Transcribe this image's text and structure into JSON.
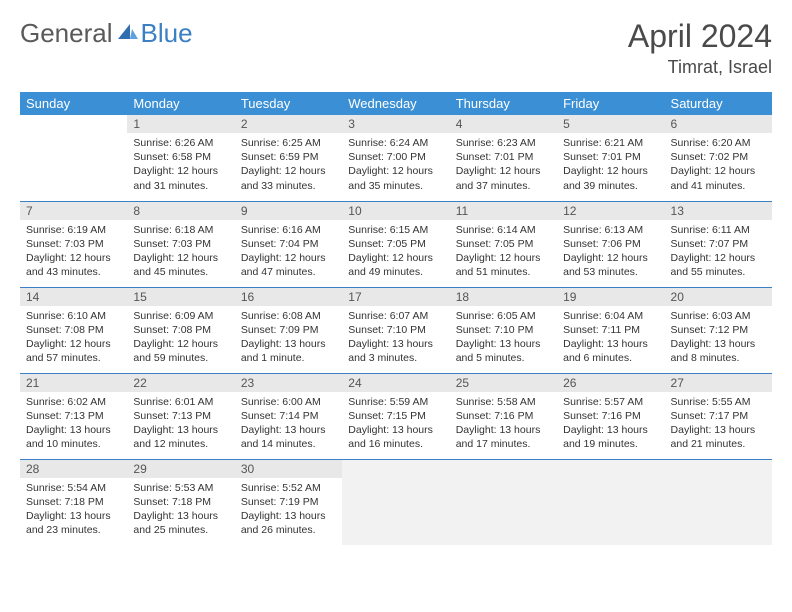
{
  "brand": {
    "part1": "General",
    "part2": "Blue"
  },
  "title": "April 2024",
  "location": "Timrat, Israel",
  "colors": {
    "header_bg": "#3b8fd4",
    "header_text": "#ffffff",
    "rule": "#3b7fc4",
    "daynum_bg": "#e8e8e8",
    "text": "#333333",
    "logo_gray": "#5a5a5a",
    "logo_blue": "#3b7fc4",
    "trailing_bg": "#f2f2f2"
  },
  "fonts": {
    "title_pt": 32,
    "location_pt": 18,
    "dayhead_pt": 13,
    "body_pt": 10.5
  },
  "dayNames": [
    "Sunday",
    "Monday",
    "Tuesday",
    "Wednesday",
    "Thursday",
    "Friday",
    "Saturday"
  ],
  "weeks": [
    [
      {
        "n": "",
        "sr": "",
        "ss": "",
        "dl": ""
      },
      {
        "n": "1",
        "sr": "Sunrise: 6:26 AM",
        "ss": "Sunset: 6:58 PM",
        "dl": "Daylight: 12 hours and 31 minutes."
      },
      {
        "n": "2",
        "sr": "Sunrise: 6:25 AM",
        "ss": "Sunset: 6:59 PM",
        "dl": "Daylight: 12 hours and 33 minutes."
      },
      {
        "n": "3",
        "sr": "Sunrise: 6:24 AM",
        "ss": "Sunset: 7:00 PM",
        "dl": "Daylight: 12 hours and 35 minutes."
      },
      {
        "n": "4",
        "sr": "Sunrise: 6:23 AM",
        "ss": "Sunset: 7:01 PM",
        "dl": "Daylight: 12 hours and 37 minutes."
      },
      {
        "n": "5",
        "sr": "Sunrise: 6:21 AM",
        "ss": "Sunset: 7:01 PM",
        "dl": "Daylight: 12 hours and 39 minutes."
      },
      {
        "n": "6",
        "sr": "Sunrise: 6:20 AM",
        "ss": "Sunset: 7:02 PM",
        "dl": "Daylight: 12 hours and 41 minutes."
      }
    ],
    [
      {
        "n": "7",
        "sr": "Sunrise: 6:19 AM",
        "ss": "Sunset: 7:03 PM",
        "dl": "Daylight: 12 hours and 43 minutes."
      },
      {
        "n": "8",
        "sr": "Sunrise: 6:18 AM",
        "ss": "Sunset: 7:03 PM",
        "dl": "Daylight: 12 hours and 45 minutes."
      },
      {
        "n": "9",
        "sr": "Sunrise: 6:16 AM",
        "ss": "Sunset: 7:04 PM",
        "dl": "Daylight: 12 hours and 47 minutes."
      },
      {
        "n": "10",
        "sr": "Sunrise: 6:15 AM",
        "ss": "Sunset: 7:05 PM",
        "dl": "Daylight: 12 hours and 49 minutes."
      },
      {
        "n": "11",
        "sr": "Sunrise: 6:14 AM",
        "ss": "Sunset: 7:05 PM",
        "dl": "Daylight: 12 hours and 51 minutes."
      },
      {
        "n": "12",
        "sr": "Sunrise: 6:13 AM",
        "ss": "Sunset: 7:06 PM",
        "dl": "Daylight: 12 hours and 53 minutes."
      },
      {
        "n": "13",
        "sr": "Sunrise: 6:11 AM",
        "ss": "Sunset: 7:07 PM",
        "dl": "Daylight: 12 hours and 55 minutes."
      }
    ],
    [
      {
        "n": "14",
        "sr": "Sunrise: 6:10 AM",
        "ss": "Sunset: 7:08 PM",
        "dl": "Daylight: 12 hours and 57 minutes."
      },
      {
        "n": "15",
        "sr": "Sunrise: 6:09 AM",
        "ss": "Sunset: 7:08 PM",
        "dl": "Daylight: 12 hours and 59 minutes."
      },
      {
        "n": "16",
        "sr": "Sunrise: 6:08 AM",
        "ss": "Sunset: 7:09 PM",
        "dl": "Daylight: 13 hours and 1 minute."
      },
      {
        "n": "17",
        "sr": "Sunrise: 6:07 AM",
        "ss": "Sunset: 7:10 PM",
        "dl": "Daylight: 13 hours and 3 minutes."
      },
      {
        "n": "18",
        "sr": "Sunrise: 6:05 AM",
        "ss": "Sunset: 7:10 PM",
        "dl": "Daylight: 13 hours and 5 minutes."
      },
      {
        "n": "19",
        "sr": "Sunrise: 6:04 AM",
        "ss": "Sunset: 7:11 PM",
        "dl": "Daylight: 13 hours and 6 minutes."
      },
      {
        "n": "20",
        "sr": "Sunrise: 6:03 AM",
        "ss": "Sunset: 7:12 PM",
        "dl": "Daylight: 13 hours and 8 minutes."
      }
    ],
    [
      {
        "n": "21",
        "sr": "Sunrise: 6:02 AM",
        "ss": "Sunset: 7:13 PM",
        "dl": "Daylight: 13 hours and 10 minutes."
      },
      {
        "n": "22",
        "sr": "Sunrise: 6:01 AM",
        "ss": "Sunset: 7:13 PM",
        "dl": "Daylight: 13 hours and 12 minutes."
      },
      {
        "n": "23",
        "sr": "Sunrise: 6:00 AM",
        "ss": "Sunset: 7:14 PM",
        "dl": "Daylight: 13 hours and 14 minutes."
      },
      {
        "n": "24",
        "sr": "Sunrise: 5:59 AM",
        "ss": "Sunset: 7:15 PM",
        "dl": "Daylight: 13 hours and 16 minutes."
      },
      {
        "n": "25",
        "sr": "Sunrise: 5:58 AM",
        "ss": "Sunset: 7:16 PM",
        "dl": "Daylight: 13 hours and 17 minutes."
      },
      {
        "n": "26",
        "sr": "Sunrise: 5:57 AM",
        "ss": "Sunset: 7:16 PM",
        "dl": "Daylight: 13 hours and 19 minutes."
      },
      {
        "n": "27",
        "sr": "Sunrise: 5:55 AM",
        "ss": "Sunset: 7:17 PM",
        "dl": "Daylight: 13 hours and 21 minutes."
      }
    ],
    [
      {
        "n": "28",
        "sr": "Sunrise: 5:54 AM",
        "ss": "Sunset: 7:18 PM",
        "dl": "Daylight: 13 hours and 23 minutes."
      },
      {
        "n": "29",
        "sr": "Sunrise: 5:53 AM",
        "ss": "Sunset: 7:18 PM",
        "dl": "Daylight: 13 hours and 25 minutes."
      },
      {
        "n": "30",
        "sr": "Sunrise: 5:52 AM",
        "ss": "Sunset: 7:19 PM",
        "dl": "Daylight: 13 hours and 26 minutes."
      },
      {
        "n": "",
        "sr": "",
        "ss": "",
        "dl": "",
        "trailing": true
      },
      {
        "n": "",
        "sr": "",
        "ss": "",
        "dl": "",
        "trailing": true
      },
      {
        "n": "",
        "sr": "",
        "ss": "",
        "dl": "",
        "trailing": true
      },
      {
        "n": "",
        "sr": "",
        "ss": "",
        "dl": "",
        "trailing": true
      }
    ]
  ]
}
